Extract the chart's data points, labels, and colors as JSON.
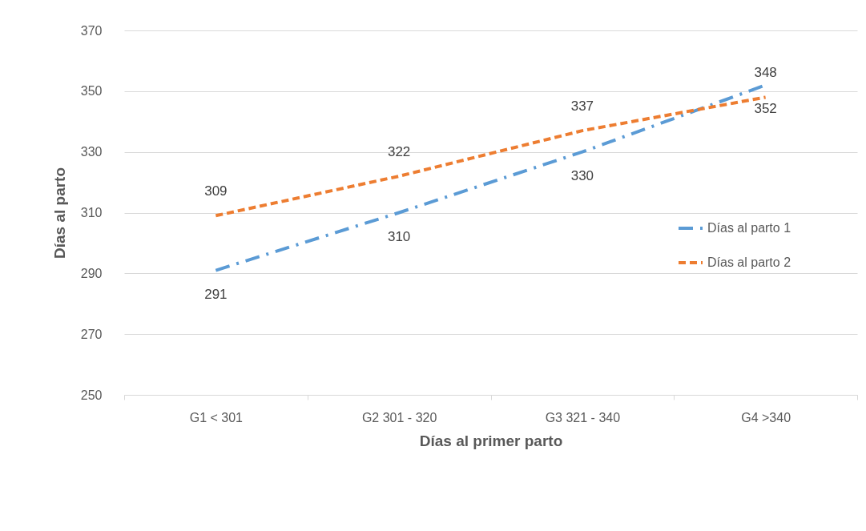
{
  "chart_data": {
    "type": "line",
    "xlabel": "Días al primer parto",
    "ylabel": "Días al parto",
    "categories": [
      "G1 < 301",
      "G2 301 - 320",
      "G3 321 - 340",
      "G4 >340"
    ],
    "series": [
      {
        "name": "Días al parto 1",
        "color": "#5b9bd5",
        "line_style": "dashdot",
        "values": [
          291,
          310,
          330,
          352
        ]
      },
      {
        "name": "Días al parto 2",
        "color": "#ed7d31",
        "line_style": "dashed",
        "values": [
          309,
          322,
          337,
          348
        ]
      }
    ],
    "ylim": [
      250,
      370
    ],
    "yticks": [
      250,
      270,
      290,
      310,
      330,
      350,
      370
    ],
    "grid": "y",
    "legend": "right",
    "data_labels": true
  }
}
